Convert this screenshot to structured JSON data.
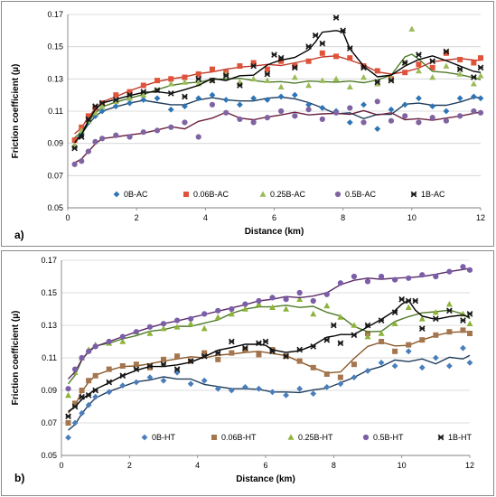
{
  "chart_data": [
    {
      "type": "scatter",
      "panel_label": "a)",
      "xlabel": "Distance (km)",
      "ylabel": "Friction coefficient (µ)",
      "xlim": [
        0,
        12
      ],
      "ylim": [
        0.05,
        0.17
      ],
      "xticks": [
        "0",
        "2",
        "4",
        "6",
        "8",
        "10",
        "12"
      ],
      "yticks": [
        "0.05",
        "0.07",
        "0.09",
        "0.11",
        "0.13",
        "0.15",
        "0.17"
      ],
      "grid": "horizontal",
      "legend_position": "bottom-inside",
      "series": [
        {
          "name": "0B-AC",
          "color": "#2e75b6",
          "marker": "diamond",
          "x": [
            0.2,
            0.4,
            0.6,
            0.8,
            1,
            1.4,
            1.8,
            2.2,
            2.6,
            3,
            3.4,
            3.8,
            4.2,
            4.6,
            5,
            5.4,
            5.8,
            6.2,
            6.6,
            7,
            7.4,
            7.8,
            8.2,
            8.6,
            9,
            9.4,
            9.8,
            10.2,
            10.6,
            11,
            11.4,
            11.8,
            12
          ],
          "y": [
            0.088,
            0.096,
            0.103,
            0.107,
            0.11,
            0.113,
            0.115,
            0.117,
            0.118,
            0.111,
            0.113,
            0.118,
            0.12,
            0.117,
            0.114,
            0.118,
            0.117,
            0.119,
            0.12,
            0.114,
            0.112,
            0.11,
            0.103,
            0.114,
            0.099,
            0.111,
            0.114,
            0.118,
            0.113,
            0.11,
            0.118,
            0.119,
            0.118
          ]
        },
        {
          "name": "0.06B-AC",
          "color": "#e0533a",
          "marker": "square",
          "x": [
            0.2,
            0.4,
            0.6,
            0.8,
            1,
            1.4,
            1.8,
            2.2,
            2.6,
            3,
            3.4,
            3.8,
            4.2,
            4.6,
            5,
            5.4,
            5.8,
            6.2,
            6.6,
            7,
            7.4,
            7.8,
            8.2,
            8.6,
            9,
            9.4,
            9.8,
            10.2,
            10.6,
            11,
            11.4,
            11.8,
            12
          ],
          "y": [
            0.092,
            0.1,
            0.107,
            0.112,
            0.115,
            0.12,
            0.122,
            0.126,
            0.129,
            0.13,
            0.131,
            0.133,
            0.136,
            0.134,
            0.138,
            0.14,
            0.136,
            0.141,
            0.138,
            0.141,
            0.146,
            0.144,
            0.143,
            0.138,
            0.135,
            0.13,
            0.134,
            0.139,
            0.137,
            0.146,
            0.142,
            0.14,
            0.143
          ]
        },
        {
          "name": "0.25B-AC",
          "color": "#9bbb59",
          "marker": "triangle",
          "x": [
            0.2,
            0.4,
            0.6,
            0.8,
            1,
            1.4,
            1.8,
            2.2,
            2.6,
            3,
            3.4,
            3.8,
            4.2,
            4.6,
            5,
            5.4,
            5.8,
            6.2,
            6.6,
            7,
            7.4,
            7.8,
            8.2,
            8.6,
            9,
            9.4,
            9.8,
            10,
            10.2,
            10.6,
            11,
            11.4,
            11.8,
            12
          ],
          "y": [
            0.089,
            0.098,
            0.104,
            0.109,
            0.113,
            0.116,
            0.118,
            0.12,
            0.123,
            0.127,
            0.128,
            0.127,
            0.129,
            0.133,
            0.128,
            0.13,
            0.129,
            0.125,
            0.131,
            0.126,
            0.129,
            0.13,
            0.125,
            0.131,
            0.127,
            0.13,
            0.14,
            0.161,
            0.135,
            0.131,
            0.138,
            0.133,
            0.127,
            0.132
          ]
        },
        {
          "name": "0.5B-AC",
          "color": "#8064a2",
          "marker": "circle",
          "x": [
            0.2,
            0.4,
            0.6,
            0.8,
            1,
            1.4,
            1.8,
            2.2,
            2.6,
            3,
            3.4,
            3.8,
            4.2,
            4.6,
            5,
            5.4,
            5.8,
            6.2,
            6.6,
            7,
            7.4,
            7.8,
            8.2,
            8.6,
            9,
            9.4,
            9.8,
            10.2,
            10.6,
            11,
            11.4,
            11.8,
            12
          ],
          "y": [
            0.077,
            0.079,
            0.085,
            0.091,
            0.093,
            0.095,
            0.094,
            0.097,
            0.098,
            0.1,
            0.103,
            0.094,
            0.114,
            0.109,
            0.105,
            0.103,
            0.106,
            0.11,
            0.107,
            0.111,
            0.105,
            0.109,
            0.112,
            0.103,
            0.116,
            0.104,
            0.107,
            0.103,
            0.106,
            0.104,
            0.107,
            0.11,
            0.109
          ]
        },
        {
          "name": "1B-AC",
          "color": "#1a1a1a",
          "marker": "x",
          "x": [
            0.2,
            0.4,
            0.6,
            0.8,
            1,
            1.4,
            1.8,
            2.2,
            2.6,
            3,
            3.4,
            3.8,
            4.2,
            4.6,
            5,
            5.4,
            5.8,
            6,
            6.2,
            6.6,
            7,
            7.2,
            7.4,
            7.8,
            8,
            8.2,
            8.6,
            9,
            9.4,
            9.8,
            10.2,
            10.6,
            11,
            11.4,
            11.8,
            12
          ],
          "y": [
            0.087,
            0.094,
            0.105,
            0.113,
            0.115,
            0.117,
            0.12,
            0.122,
            0.123,
            0.121,
            0.119,
            0.13,
            0.129,
            0.132,
            0.126,
            0.138,
            0.133,
            0.145,
            0.143,
            0.137,
            0.15,
            0.157,
            0.152,
            0.168,
            0.16,
            0.149,
            0.137,
            0.128,
            0.129,
            0.14,
            0.145,
            0.141,
            0.147,
            0.136,
            0.131,
            0.137
          ]
        }
      ]
    },
    {
      "type": "scatter",
      "panel_label": "b)",
      "xlabel": "Distance (km)",
      "ylabel": "Friction coefficient (µ)",
      "xlim": [
        0,
        12
      ],
      "ylim": [
        0.05,
        0.17
      ],
      "xticks": [
        "0",
        "2",
        "4",
        "6",
        "8",
        "10",
        "12"
      ],
      "yticks": [
        "0.05",
        "0.07",
        "0.09",
        "0.11",
        "0.13",
        "0.15",
        "0.17"
      ],
      "grid": "horizontal",
      "legend_position": "bottom-inside",
      "series": [
        {
          "name": "0B-HT",
          "color": "#4a7ebb",
          "marker": "diamond",
          "x": [
            0.2,
            0.4,
            0.6,
            0.8,
            1,
            1.4,
            1.8,
            2.2,
            2.6,
            3,
            3.4,
            3.8,
            4.2,
            4.6,
            5,
            5.4,
            5.8,
            6.2,
            6.6,
            7,
            7.4,
            7.8,
            8.2,
            8.6,
            9,
            9.4,
            9.8,
            10.2,
            10.6,
            11,
            11.4,
            11.8,
            12
          ],
          "y": [
            0.061,
            0.07,
            0.076,
            0.081,
            0.086,
            0.089,
            0.093,
            0.095,
            0.098,
            0.096,
            0.101,
            0.094,
            0.096,
            0.091,
            0.09,
            0.092,
            0.091,
            0.089,
            0.087,
            0.091,
            0.088,
            0.092,
            0.094,
            0.098,
            0.102,
            0.107,
            0.105,
            0.114,
            0.104,
            0.11,
            0.105,
            0.116,
            0.107
          ]
        },
        {
          "name": "0.06B-HT",
          "color": "#a5764e",
          "marker": "square",
          "x": [
            0.2,
            0.4,
            0.6,
            0.8,
            1,
            1.4,
            1.8,
            2.2,
            2.6,
            3,
            3.4,
            3.8,
            4.2,
            4.6,
            5,
            5.4,
            5.8,
            6.2,
            6.6,
            7,
            7.4,
            7.8,
            8.2,
            8.6,
            9,
            9.4,
            9.8,
            10.2,
            10.6,
            11,
            11.4,
            11.8,
            12
          ],
          "y": [
            0.07,
            0.082,
            0.09,
            0.096,
            0.099,
            0.103,
            0.105,
            0.106,
            0.104,
            0.109,
            0.111,
            0.108,
            0.113,
            0.109,
            0.113,
            0.115,
            0.112,
            0.115,
            0.111,
            0.108,
            0.104,
            0.1,
            0.098,
            0.106,
            0.125,
            0.12,
            0.114,
            0.118,
            0.121,
            0.124,
            0.126,
            0.127,
            0.125
          ]
        },
        {
          "name": "0.25B-HT",
          "color": "#8db33a",
          "marker": "triangle",
          "x": [
            0.2,
            0.4,
            0.6,
            0.8,
            1,
            1.4,
            1.8,
            2.2,
            2.6,
            3,
            3.4,
            3.8,
            4.2,
            4.6,
            5,
            5.4,
            5.8,
            6.2,
            6.6,
            7,
            7.4,
            7.8,
            8.2,
            8.6,
            9,
            9.4,
            9.8,
            10.2,
            10.6,
            11,
            11.4,
            11.8,
            12
          ],
          "y": [
            0.087,
            0.101,
            0.11,
            0.115,
            0.118,
            0.119,
            0.12,
            0.126,
            0.125,
            0.128,
            0.129,
            0.131,
            0.128,
            0.135,
            0.137,
            0.14,
            0.143,
            0.141,
            0.14,
            0.146,
            0.137,
            0.142,
            0.135,
            0.13,
            0.123,
            0.125,
            0.131,
            0.141,
            0.134,
            0.138,
            0.143,
            0.137,
            0.131
          ]
        },
        {
          "name": "0.5B-HT",
          "color": "#7b5ea7",
          "marker": "circle",
          "x": [
            0.2,
            0.4,
            0.6,
            0.8,
            1,
            1.4,
            1.8,
            2.2,
            2.6,
            3,
            3.4,
            3.8,
            4.2,
            4.6,
            5,
            5.4,
            5.8,
            6.2,
            6.6,
            7,
            7.4,
            7.8,
            8.2,
            8.6,
            9,
            9.4,
            9.8,
            10.2,
            10.6,
            11,
            11.4,
            11.8,
            12
          ],
          "y": [
            0.091,
            0.103,
            0.11,
            0.114,
            0.117,
            0.12,
            0.123,
            0.126,
            0.129,
            0.131,
            0.133,
            0.134,
            0.137,
            0.139,
            0.14,
            0.143,
            0.145,
            0.147,
            0.146,
            0.15,
            0.145,
            0.149,
            0.156,
            0.16,
            0.157,
            0.16,
            0.158,
            0.159,
            0.161,
            0.16,
            0.163,
            0.166,
            0.164
          ]
        },
        {
          "name": "1B-HT",
          "color": "#1a1a1a",
          "marker": "x",
          "x": [
            0.2,
            0.4,
            0.6,
            0.8,
            1,
            1.4,
            1.8,
            2.2,
            2.6,
            3,
            3.4,
            3.8,
            4.2,
            4.6,
            5,
            5.4,
            5.8,
            6,
            6.2,
            6.6,
            7,
            7.4,
            7.8,
            8,
            8.2,
            8.6,
            9,
            9.4,
            9.8,
            10,
            10.2,
            10.4,
            10.6,
            11,
            11.4,
            11.8,
            12
          ],
          "y": [
            0.074,
            0.08,
            0.086,
            0.087,
            0.09,
            0.095,
            0.099,
            0.103,
            0.105,
            0.106,
            0.103,
            0.108,
            0.111,
            0.113,
            0.12,
            0.116,
            0.119,
            0.12,
            0.114,
            0.111,
            0.115,
            0.117,
            0.121,
            0.13,
            0.119,
            0.124,
            0.13,
            0.133,
            0.138,
            0.146,
            0.145,
            0.145,
            0.128,
            0.134,
            0.139,
            0.133,
            0.137
          ]
        }
      ]
    }
  ]
}
